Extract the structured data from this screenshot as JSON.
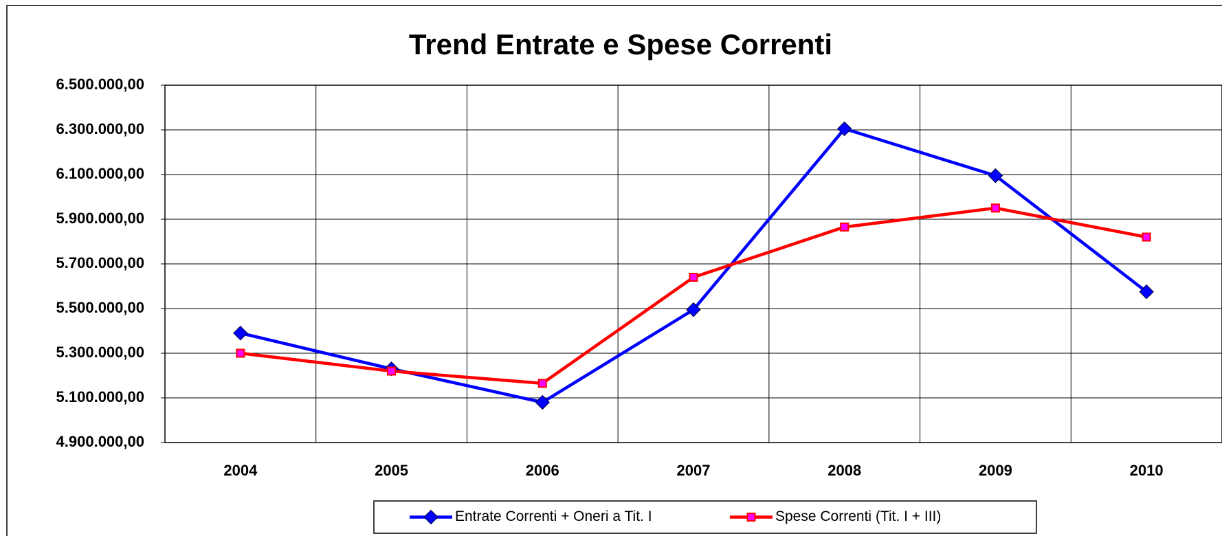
{
  "chart_data": {
    "type": "line",
    "title": "Trend Entrate e Spese Correnti",
    "categories": [
      "2004",
      "2005",
      "2006",
      "2007",
      "2008",
      "2009",
      "2010"
    ],
    "series": [
      {
        "name": "Entrate Correnti + Oneri a Tit. I",
        "color": "#0000ff",
        "marker": "diamond",
        "values": [
          5390000,
          5230000,
          5080000,
          5495000,
          6305000,
          6095000,
          5575000
        ]
      },
      {
        "name": "Spese Correnti (Tit. I + III)",
        "color": "#ff0000",
        "marker": "square",
        "values": [
          5300000,
          5220000,
          5165000,
          5640000,
          5865000,
          5950000,
          5820000
        ]
      }
    ],
    "ylim": [
      4900000,
      6500000
    ],
    "yticks": [
      {
        "value": 4900000,
        "label": "4.900.000,00"
      },
      {
        "value": 5100000,
        "label": "5.100.000,00"
      },
      {
        "value": 5300000,
        "label": "5.300.000,00"
      },
      {
        "value": 5500000,
        "label": "5.500.000,00"
      },
      {
        "value": 5700000,
        "label": "5.700.000,00"
      },
      {
        "value": 5900000,
        "label": "5.900.000,00"
      },
      {
        "value": 6100000,
        "label": "6.100.000,00"
      },
      {
        "value": 6300000,
        "label": "6.300.000,00"
      },
      {
        "value": 6500000,
        "label": "6.500.000,00"
      }
    ],
    "grid": true,
    "legend": "bottom"
  }
}
